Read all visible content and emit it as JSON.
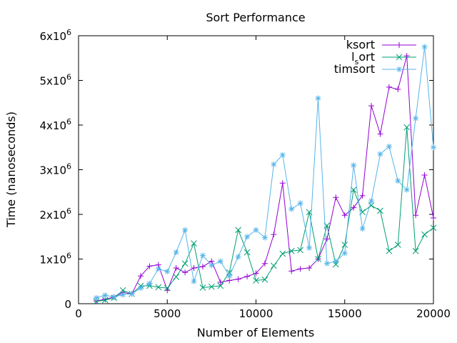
{
  "chart_data": {
    "type": "line",
    "title": "Sort Performance",
    "xlabel": "Number of Elements",
    "ylabel": "Time (nanoseconds)",
    "xlim": [
      0,
      20000
    ],
    "ylim": [
      0,
      6000000
    ],
    "grid": false,
    "legend_position": "top-right",
    "x_ticks": [
      {
        "value": 0,
        "label": "0"
      },
      {
        "value": 5000,
        "label": "5000"
      },
      {
        "value": 10000,
        "label": "10000"
      },
      {
        "value": 15000,
        "label": "15000"
      },
      {
        "value": 20000,
        "label": "20000"
      }
    ],
    "y_ticks": [
      {
        "value": 0,
        "base": "0",
        "exp": ""
      },
      {
        "value": 1000000,
        "base": "1x10",
        "exp": "6"
      },
      {
        "value": 2000000,
        "base": "2x10",
        "exp": "6"
      },
      {
        "value": 3000000,
        "base": "3x10",
        "exp": "6"
      },
      {
        "value": 4000000,
        "base": "4x10",
        "exp": "6"
      },
      {
        "value": 5000000,
        "base": "5x10",
        "exp": "6"
      },
      {
        "value": 6000000,
        "base": "6x10",
        "exp": "6"
      }
    ],
    "x": [
      1000,
      1500,
      2000,
      2500,
      3000,
      3500,
      4000,
      4500,
      5000,
      5500,
      6000,
      6500,
      7000,
      7500,
      8000,
      8500,
      9000,
      9500,
      10000,
      10500,
      11000,
      11500,
      12000,
      12500,
      13000,
      13500,
      14000,
      14500,
      15000,
      15500,
      16000,
      16500,
      17000,
      17500,
      18000,
      18500,
      19000,
      19500,
      20000
    ],
    "series": [
      {
        "name": "ksort",
        "legend_main": "ksort",
        "legend_sub": "",
        "legend_rest": "",
        "color": "#9400d3",
        "marker": "plus",
        "values": [
          60000,
          100000,
          150000,
          250000,
          220000,
          620000,
          840000,
          870000,
          300000,
          800000,
          700000,
          800000,
          830000,
          950000,
          480000,
          520000,
          550000,
          610000,
          680000,
          900000,
          1550000,
          2700000,
          730000,
          780000,
          800000,
          1000000,
          1450000,
          2380000,
          1980000,
          2150000,
          2420000,
          4430000,
          3800000,
          4850000,
          4800000,
          5550000,
          1980000,
          2880000,
          1920000
        ]
      },
      {
        "name": "l_sort",
        "legend_main": "l",
        "legend_sub": "s",
        "legend_rest": "ort",
        "color": "#009e73",
        "marker": "x",
        "values": [
          50000,
          80000,
          130000,
          300000,
          220000,
          400000,
          400000,
          370000,
          350000,
          600000,
          900000,
          1350000,
          360000,
          380000,
          400000,
          700000,
          1650000,
          1150000,
          520000,
          540000,
          850000,
          1120000,
          1180000,
          1200000,
          2050000,
          1000000,
          1750000,
          880000,
          1320000,
          2550000,
          2050000,
          2200000,
          2080000,
          1180000,
          1320000,
          3950000,
          1180000,
          1550000,
          1700000
        ]
      },
      {
        "name": "timsort",
        "legend_main": "timsort",
        "legend_sub": "",
        "legend_rest": "",
        "color": "#56b4e9",
        "marker": "star",
        "values": [
          130000,
          190000,
          150000,
          200000,
          220000,
          350000,
          450000,
          780000,
          720000,
          1150000,
          1650000,
          500000,
          1080000,
          860000,
          950000,
          620000,
          1050000,
          1500000,
          1650000,
          1480000,
          3120000,
          3330000,
          2120000,
          2250000,
          1250000,
          4600000,
          900000,
          950000,
          1130000,
          3100000,
          1680000,
          2300000,
          3350000,
          3520000,
          2750000,
          2550000,
          4150000,
          5750000,
          3500000
        ]
      }
    ]
  }
}
